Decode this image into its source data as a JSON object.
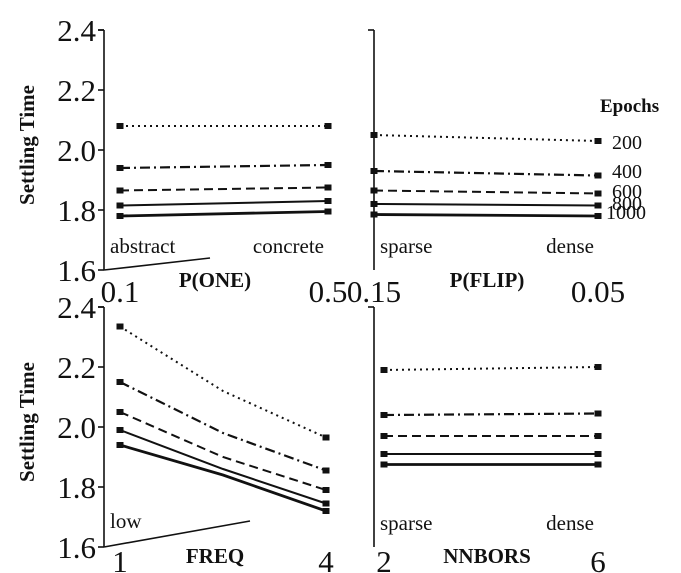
{
  "chart_data": [
    {
      "type": "line",
      "panel": "top-left",
      "xlabel": "P(ONE)",
      "ylabel": "Settling Time",
      "x": [
        0.1,
        0.5
      ],
      "x_tick_labels": [
        "0.1",
        "0.5"
      ],
      "corner_labels": [
        "abstract",
        "concrete"
      ],
      "ylim": [
        1.6,
        2.4
      ],
      "y_ticks": [
        "1.6",
        "1.8",
        "2.0",
        "2.2",
        "2.4"
      ],
      "series": [
        {
          "name": "200",
          "style": "dotted",
          "values": [
            2.08,
            2.08
          ]
        },
        {
          "name": "400",
          "style": "dashdot",
          "values": [
            1.94,
            1.95
          ]
        },
        {
          "name": "600",
          "style": "dashed",
          "values": [
            1.865,
            1.875
          ]
        },
        {
          "name": "800",
          "style": "solid",
          "values": [
            1.815,
            1.83
          ]
        },
        {
          "name": "1000",
          "style": "solid-bold",
          "values": [
            1.78,
            1.795
          ]
        }
      ]
    },
    {
      "type": "line",
      "panel": "top-right",
      "xlabel": "P(FLIP)",
      "ylabel": "",
      "x": [
        0.15,
        0.05
      ],
      "x_tick_labels": [
        "0.15",
        "0.05"
      ],
      "corner_labels": [
        "sparse",
        "dense"
      ],
      "ylim": [
        1.6,
        2.4
      ],
      "series": [
        {
          "name": "200",
          "style": "dotted",
          "values": [
            2.05,
            2.03
          ]
        },
        {
          "name": "400",
          "style": "dashdot",
          "values": [
            1.93,
            1.915
          ]
        },
        {
          "name": "600",
          "style": "dashed",
          "values": [
            1.865,
            1.855
          ]
        },
        {
          "name": "800",
          "style": "solid",
          "values": [
            1.82,
            1.815
          ]
        },
        {
          "name": "1000",
          "style": "solid-bold",
          "values": [
            1.785,
            1.78
          ]
        }
      ]
    },
    {
      "type": "line",
      "panel": "bottom-left",
      "xlabel": "FREQ",
      "ylabel": "Settling Time",
      "x": [
        1,
        2.5,
        4
      ],
      "x_tick_labels": [
        "1",
        "4"
      ],
      "corner_labels": [
        "low"
      ],
      "ylim": [
        1.6,
        2.4
      ],
      "y_ticks": [
        "1.6",
        "1.8",
        "2.0",
        "2.2",
        "2.4"
      ],
      "series": [
        {
          "name": "200",
          "style": "dotted",
          "values": [
            2.335,
            2.12,
            1.965
          ]
        },
        {
          "name": "400",
          "style": "dashdot",
          "values": [
            2.15,
            1.98,
            1.855
          ]
        },
        {
          "name": "600",
          "style": "dashed",
          "values": [
            2.05,
            1.9,
            1.79
          ]
        },
        {
          "name": "800",
          "style": "solid",
          "values": [
            1.99,
            1.86,
            1.745
          ]
        },
        {
          "name": "1000",
          "style": "solid-bold",
          "values": [
            1.94,
            1.84,
            1.72
          ]
        }
      ]
    },
    {
      "type": "line",
      "panel": "bottom-right",
      "xlabel": "NNBORS",
      "ylabel": "",
      "x": [
        2,
        6
      ],
      "x_tick_labels": [
        "2",
        "6"
      ],
      "corner_labels": [
        "sparse",
        "dense"
      ],
      "ylim": [
        1.6,
        2.4
      ],
      "series": [
        {
          "name": "200",
          "style": "dotted",
          "values": [
            2.19,
            2.2
          ]
        },
        {
          "name": "400",
          "style": "dashdot",
          "values": [
            2.04,
            2.045
          ]
        },
        {
          "name": "600",
          "style": "dashed",
          "values": [
            1.97,
            1.97
          ]
        },
        {
          "name": "800",
          "style": "solid",
          "values": [
            1.91,
            1.91
          ]
        },
        {
          "name": "1000",
          "style": "solid-bold",
          "values": [
            1.875,
            1.875
          ]
        }
      ]
    }
  ],
  "legend": {
    "title": "Epochs",
    "entries": [
      "200",
      "400",
      "600",
      "800",
      "1000"
    ],
    "placement": "right of top-right panel"
  }
}
